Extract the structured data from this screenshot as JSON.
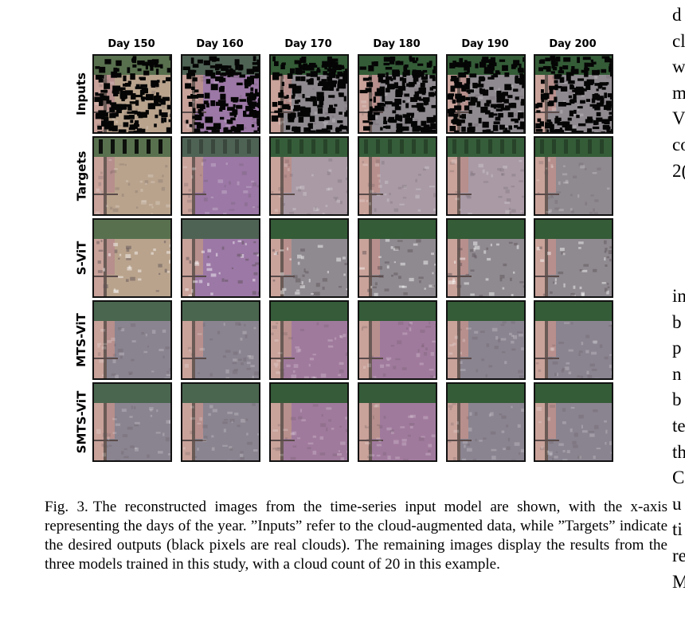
{
  "figure": {
    "columns": [
      "Day 150",
      "Day 160",
      "Day 170",
      "Day 180",
      "Day 190",
      "Day 200"
    ],
    "rows": [
      "Inputs",
      "Targets",
      "S-ViT",
      "MTS-ViT",
      "SMTS-ViT"
    ],
    "image_description_note": ""
  },
  "caption": {
    "fig_no": "Fig. 3.",
    "text": "The reconstructed images from the time-series input model are shown, with the x-axis representing the days of the year. ”Inputs” refer to the cloud-augmented data, while ”Targets” indicate the desired outputs (black pixels are real clouds). The remaining images display the results from the three models trained in this study, with a cloud count of 20 in this example."
  },
  "right_column": {
    "top": [
      "d",
      "cl",
      "w",
      "m",
      "V",
      "co",
      "2("
    ],
    "bottom": [
      "in",
      "b",
      "p",
      "n",
      "b",
      "te",
      "th",
      "C",
      "u",
      "ti",
      "re",
      "M"
    ]
  },
  "colors": {
    "tile_border": "#111111",
    "field_tan": "#b9a38d",
    "field_purple": "#9c78a6",
    "field_gray": "#8f8a90",
    "vegetation": "#2f5a33",
    "cloud": "#050505"
  }
}
